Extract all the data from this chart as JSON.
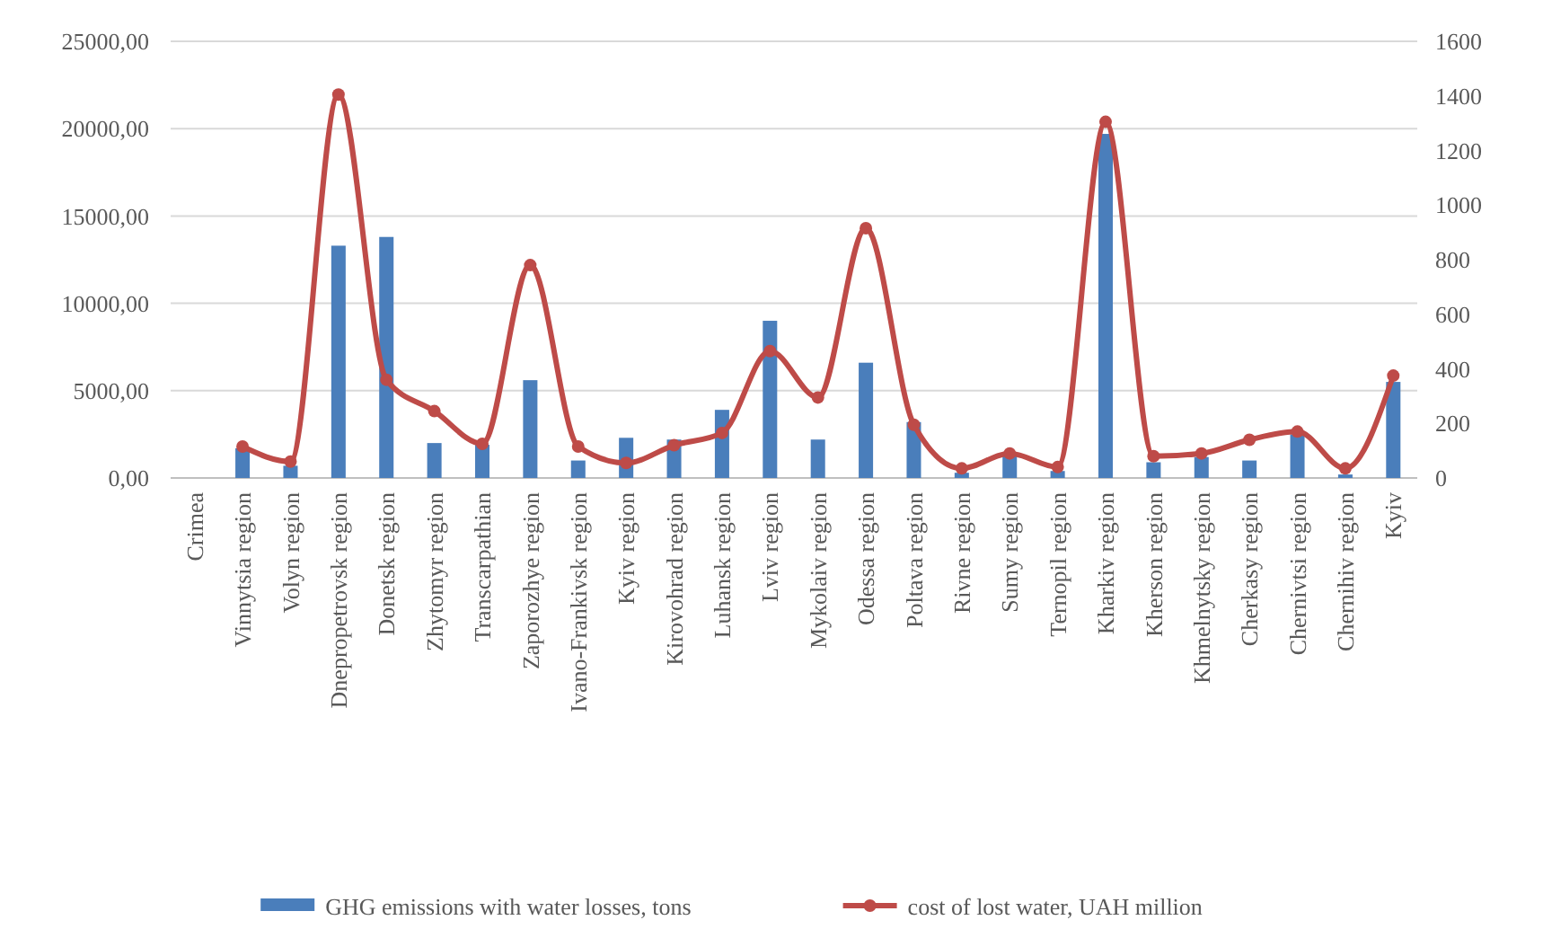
{
  "chart_data": {
    "type": "bar",
    "categories": [
      "Crimea",
      "Vinnytsia region",
      "Volyn region",
      "Dnepropetrovsk region",
      "Donetsk region",
      "Zhytomyr region",
      "Transcarpathian",
      "Zaporozhye region",
      "Ivano-Frankivsk region",
      "Kyiv region",
      "Kirovohrad region",
      "Luhansk region",
      "Lviv region",
      "Mykolaiv region",
      "Odessa region",
      "Poltava region",
      "Rivne region",
      "Sumy region",
      "Ternopil region",
      "Kharkiv region",
      "Kherson region",
      "Khmelnytsky region",
      "Cherkasy region",
      "Chernivtsi region",
      "Chernihiv region",
      "Kyiv"
    ],
    "series": [
      {
        "name": "GHG emissions with water losses, tons",
        "color": "#4a7ebb",
        "values": [
          null,
          1700,
          700,
          13300,
          13800,
          2000,
          1900,
          5600,
          1000,
          2300,
          2200,
          3900,
          9000,
          2200,
          6600,
          3200,
          300,
          1400,
          400,
          19700,
          900,
          1200,
          1000,
          2500,
          200,
          5500
        ]
      },
      {
        "name": "cost of lost water, UAH million",
        "color": "#be4b48",
        "type": "line",
        "axis": "y2",
        "marker": "circle",
        "values": [
          null,
          115,
          60,
          1405,
          360,
          245,
          125,
          780,
          115,
          55,
          120,
          165,
          465,
          295,
          915,
          195,
          35,
          90,
          40,
          1305,
          80,
          90,
          140,
          170,
          35,
          375
        ]
      }
    ],
    "ylim": [
      0,
      25000
    ],
    "yticks": [
      {
        "value": 0,
        "label": "0,00"
      },
      {
        "value": 5000,
        "label": "5000,00"
      },
      {
        "value": 10000,
        "label": "10000,00"
      },
      {
        "value": 15000,
        "label": "15000,00"
      },
      {
        "value": 20000,
        "label": "20000,00"
      },
      {
        "value": 25000,
        "label": "25000,00"
      }
    ],
    "y2lim": [
      0,
      1600
    ],
    "y2ticks": [
      0,
      200,
      400,
      600,
      800,
      1000,
      1200,
      1400,
      1600
    ],
    "grid": "y",
    "legend": "bottom"
  }
}
